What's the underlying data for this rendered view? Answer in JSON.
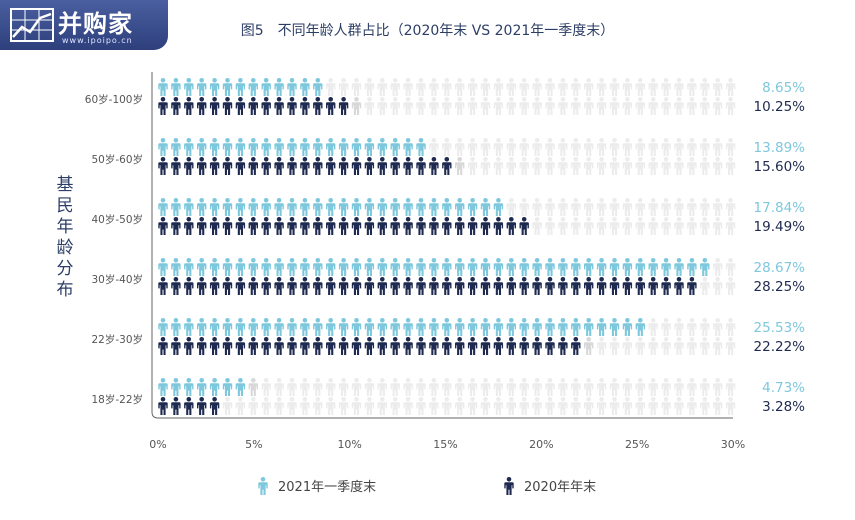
{
  "logo": {
    "name": "并购家",
    "url": "www.ipoipo.cn"
  },
  "chart_data": {
    "type": "bar",
    "title": "图5　不同年龄人群占比（2020年末 VS 2021年一季度末）",
    "ylabel": "基民年龄分布",
    "xlabel": "",
    "categories": [
      "60岁-100岁",
      "50岁-60岁",
      "40岁-50岁",
      "30岁-40岁",
      "22岁-30岁",
      "18岁-22岁"
    ],
    "series": [
      {
        "name": "2021年一季度末",
        "color": "#7ec8dd",
        "values": [
          8.65,
          13.89,
          17.84,
          28.67,
          25.53,
          4.73
        ],
        "labels": [
          "8.65%",
          "13.89%",
          "17.84%",
          "28.67%",
          "25.53%",
          "4.73%"
        ]
      },
      {
        "name": "2020年年末",
        "color": "#1e2a4f",
        "values": [
          10.25,
          15.6,
          19.49,
          28.25,
          22.22,
          3.28
        ],
        "labels": [
          "10.25%",
          "15.60%",
          "19.49%",
          "28.25%",
          "22.22%",
          "3.28%"
        ]
      }
    ],
    "xlim": [
      0,
      30
    ],
    "xticks": [
      "0%",
      "5%",
      "10%",
      "15%",
      "20%",
      "25%",
      "30%"
    ],
    "icon": "person-icon",
    "empty_icon_color": "#ececec",
    "grid": false
  }
}
